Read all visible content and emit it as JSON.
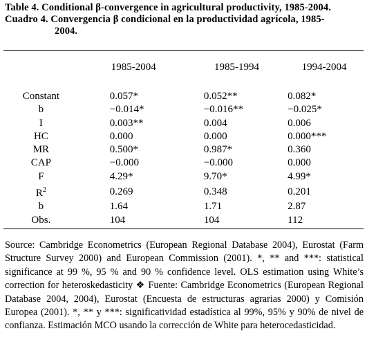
{
  "title": {
    "line1": "Table 4. Conditional β-convergence in agricultural productivity, 1985-2004.",
    "line2": "Cuadro 4. Convergencia β condicional en la productividad agrícola, 1985-",
    "line3": "2004."
  },
  "table": {
    "columns": [
      "1985-2004",
      "1985-1994",
      "1994-2004"
    ],
    "rows": [
      {
        "label": "Constant",
        "values": [
          "0.057*",
          "0.052**",
          "0.082*"
        ]
      },
      {
        "label": "b",
        "values": [
          "−0.014*",
          "−0.016**",
          "−0.025*"
        ]
      },
      {
        "label": "I",
        "values": [
          "0.003**",
          "0.004",
          "0.006"
        ]
      },
      {
        "label": "HC",
        "values": [
          "0.000",
          "0.000",
          "0.000***"
        ]
      },
      {
        "label": "MR",
        "values": [
          "0.500*",
          "0.987*",
          "0.360"
        ]
      },
      {
        "label": "CAP",
        "values": [
          "−0.000",
          "−0.000",
          "0.000"
        ]
      },
      {
        "label": "F",
        "values": [
          "4.29*",
          "9.70*",
          "4.99*"
        ]
      },
      {
        "label": "R2",
        "values": [
          "0.269",
          "0.348",
          "0.201"
        ]
      },
      {
        "label": "b",
        "values": [
          "1.64",
          "1.71",
          "2.87"
        ]
      },
      {
        "label": "Obs.",
        "values": [
          "104",
          "104",
          "112"
        ]
      }
    ]
  },
  "notes": "Source: Cambridge Econometrics (European Regional Database 2004), Eurostat (Farm Structure Survey 2000) and European Commission (2001). *, ** and ***: statistical significance at 99 %, 95 % and 90 % confidence level. OLS estimation using White’s correction for heteroskedasticity ❖ Fuente: Cambridge Econometrics (European Regional Database 2004, 2004), Eurostat (Encuesta de estructuras agrarias 2000) y Comisión Europea (2001). *, ** y ***: significatividad estadística al 99%, 95% y 90% de nivel de confianza. Estimación MCO usando la corrección de White para heterocedasticidad."
}
